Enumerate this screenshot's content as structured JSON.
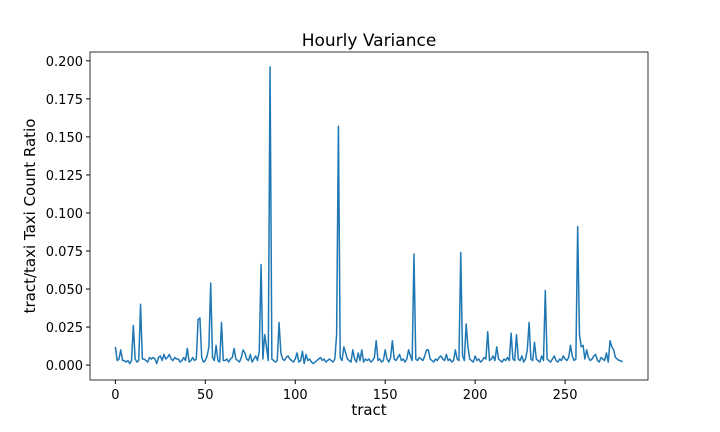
{
  "chart_data": {
    "type": "line",
    "title": "Hourly Variance",
    "xlabel": "tract",
    "ylabel": "tract/taxi Taxi Count Ratio",
    "x": [
      0,
      1,
      2,
      3,
      4,
      5,
      6,
      7,
      8,
      9,
      10,
      11,
      12,
      13,
      14,
      15,
      16,
      17,
      18,
      19,
      20,
      21,
      22,
      23,
      24,
      25,
      26,
      27,
      28,
      29,
      30,
      31,
      32,
      33,
      34,
      35,
      36,
      37,
      38,
      39,
      40,
      41,
      42,
      43,
      44,
      45,
      46,
      47,
      48,
      49,
      50,
      51,
      52,
      53,
      54,
      55,
      56,
      57,
      58,
      59,
      60,
      61,
      62,
      63,
      64,
      65,
      66,
      67,
      68,
      69,
      70,
      71,
      72,
      73,
      74,
      75,
      76,
      77,
      78,
      79,
      80,
      81,
      82,
      83,
      84,
      85,
      86,
      87,
      88,
      89,
      90,
      91,
      92,
      93,
      94,
      95,
      96,
      97,
      98,
      99,
      100,
      101,
      102,
      103,
      104,
      105,
      106,
      107,
      108,
      109,
      110,
      111,
      112,
      113,
      114,
      115,
      116,
      117,
      118,
      119,
      120,
      121,
      122,
      123,
      124,
      125,
      126,
      127,
      128,
      129,
      130,
      131,
      132,
      133,
      134,
      135,
      136,
      137,
      138,
      139,
      140,
      141,
      142,
      143,
      144,
      145,
      146,
      147,
      148,
      149,
      150,
      151,
      152,
      153,
      154,
      155,
      156,
      157,
      158,
      159,
      160,
      161,
      162,
      163,
      164,
      165,
      166,
      167,
      168,
      169,
      170,
      171,
      172,
      173,
      174,
      175,
      176,
      177,
      178,
      179,
      180,
      181,
      182,
      183,
      184,
      185,
      186,
      187,
      188,
      189,
      190,
      191,
      192,
      193,
      194,
      195,
      196,
      197,
      198,
      199,
      200,
      201,
      202,
      203,
      204,
      205,
      206,
      207,
      208,
      209,
      210,
      211,
      212,
      213,
      214,
      215,
      216,
      217,
      218,
      219,
      220,
      221,
      222,
      223,
      224,
      225,
      226,
      227,
      228,
      229,
      230,
      231,
      232,
      233,
      234,
      235,
      236,
      237,
      238,
      239,
      240,
      241,
      242,
      243,
      244,
      245,
      246,
      247,
      248,
      249,
      250,
      251,
      252,
      253,
      254,
      255,
      256,
      257,
      258,
      259,
      260,
      261,
      262,
      263,
      264,
      265,
      266,
      267,
      268,
      269,
      270,
      271,
      272,
      273,
      274,
      275,
      276,
      277,
      278,
      279,
      280,
      281,
      282
    ],
    "series": [
      {
        "color": "#1f77b4",
        "values": [
          0.012,
          0.003,
          0.004,
          0.01,
          0.003,
          0.003,
          0.002,
          0.003,
          0.001,
          0.003,
          0.026,
          0.004,
          0.002,
          0.003,
          0.04,
          0.004,
          0.004,
          0.003,
          0.002,
          0.005,
          0.004,
          0.005,
          0.004,
          0.001,
          0.005,
          0.006,
          0.003,
          0.007,
          0.004,
          0.005,
          0.007,
          0.004,
          0.003,
          0.005,
          0.004,
          0.004,
          0.002,
          0.003,
          0.005,
          0.003,
          0.011,
          0.002,
          0.003,
          0.005,
          0.003,
          0.004,
          0.03,
          0.031,
          0.005,
          0.002,
          0.003,
          0.006,
          0.012,
          0.054,
          0.005,
          0.003,
          0.013,
          0.003,
          0.002,
          0.028,
          0.003,
          0.003,
          0.004,
          0.002,
          0.004,
          0.005,
          0.011,
          0.004,
          0.003,
          0.002,
          0.005,
          0.01,
          0.008,
          0.004,
          0.003,
          0.007,
          0.002,
          0.004,
          0.006,
          0.003,
          0.009,
          0.066,
          0.004,
          0.02,
          0.012,
          0.003,
          0.196,
          0.004,
          0.003,
          0.002,
          0.003,
          0.028,
          0.008,
          0.004,
          0.003,
          0.005,
          0.006,
          0.004,
          0.003,
          0.002,
          0.004,
          0.008,
          0.002,
          0.003,
          0.009,
          0.001,
          0.007,
          0.003,
          0.004,
          0.002,
          0.001,
          0.002,
          0.003,
          0.004,
          0.005,
          0.003,
          0.004,
          0.002,
          0.003,
          0.004,
          0.003,
          0.002,
          0.004,
          0.02,
          0.157,
          0.005,
          0.003,
          0.012,
          0.008,
          0.004,
          0.003,
          0.002,
          0.01,
          0.004,
          0.002,
          0.008,
          0.003,
          0.01,
          0.002,
          0.004,
          0.003,
          0.004,
          0.002,
          0.003,
          0.005,
          0.016,
          0.003,
          0.004,
          0.002,
          0.003,
          0.01,
          0.004,
          0.002,
          0.005,
          0.016,
          0.004,
          0.003,
          0.005,
          0.007,
          0.003,
          0.004,
          0.002,
          0.004,
          0.01,
          0.006,
          0.003,
          0.073,
          0.004,
          0.003,
          0.005,
          0.004,
          0.003,
          0.006,
          0.01,
          0.01,
          0.004,
          0.003,
          0.002,
          0.004,
          0.003,
          0.005,
          0.006,
          0.004,
          0.003,
          0.007,
          0.003,
          0.004,
          0.002,
          0.003,
          0.01,
          0.004,
          0.003,
          0.074,
          0.006,
          0.003,
          0.027,
          0.012,
          0.004,
          0.003,
          0.002,
          0.006,
          0.003,
          0.004,
          0.002,
          0.003,
          0.005,
          0.004,
          0.022,
          0.003,
          0.004,
          0.006,
          0.003,
          0.012,
          0.004,
          0.003,
          0.002,
          0.004,
          0.003,
          0.005,
          0.003,
          0.021,
          0.004,
          0.003,
          0.02,
          0.004,
          0.003,
          0.006,
          0.002,
          0.004,
          0.01,
          0.028,
          0.004,
          0.003,
          0.015,
          0.004,
          0.003,
          0.002,
          0.006,
          0.003,
          0.049,
          0.004,
          0.003,
          0.002,
          0.004,
          0.006,
          0.003,
          0.002,
          0.004,
          0.003,
          0.006,
          0.004,
          0.003,
          0.005,
          0.013,
          0.006,
          0.003,
          0.004,
          0.091,
          0.02,
          0.012,
          0.013,
          0.004,
          0.01,
          0.005,
          0.003,
          0.004,
          0.006,
          0.007,
          0.003,
          0.002,
          0.005,
          0.004,
          0.003,
          0.008,
          0.002,
          0.016,
          0.012,
          0.01,
          0.005,
          0.004,
          0.003,
          0.003,
          0.002
        ]
      }
    ],
    "xlim": [
      -14.1,
      296.1
    ],
    "xticks": [
      0,
      50,
      100,
      150,
      200,
      250
    ],
    "ylim": [
      -0.0098,
      0.2058
    ],
    "yticks": [
      {
        "value": 0,
        "label": "0.000"
      },
      {
        "value": 0.025,
        "label": "0.025"
      },
      {
        "value": 0.05,
        "label": "0.050"
      },
      {
        "value": 0.075,
        "label": "0.075"
      },
      {
        "value": 0.1,
        "label": "0.100"
      },
      {
        "value": 0.125,
        "label": "0.125"
      },
      {
        "value": 0.15,
        "label": "0.150"
      },
      {
        "value": 0.175,
        "label": "0.175"
      },
      {
        "value": 0.2,
        "label": "0.200"
      }
    ],
    "grid": false
  }
}
